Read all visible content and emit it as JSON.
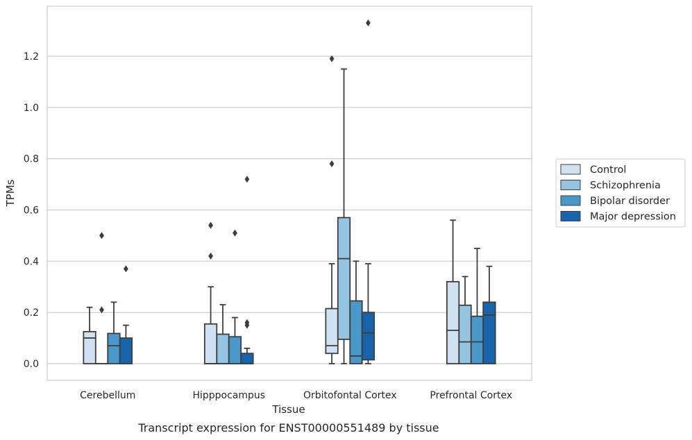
{
  "chart_data": {
    "type": "box",
    "caption": "Transcript expression for ENST00000551489 by tissue",
    "xlabel": "Tissue",
    "ylabel": "TPMs",
    "ylim": [
      -0.065,
      1.395
    ],
    "yticks": [
      0.0,
      0.2,
      0.4,
      0.6,
      0.8,
      1.0,
      1.2
    ],
    "ytick_labels": [
      "0.0",
      "0.2",
      "0.4",
      "0.6",
      "0.8",
      "1.0",
      "1.2"
    ],
    "grid": "horizontal",
    "legend_position": "right",
    "categories": [
      "Cerebellum",
      "Hipppocampus",
      "Orbitofontal Cortex",
      "Prefrontal Cortex"
    ],
    "series": [
      {
        "name": "Control",
        "color": "#d0e1f2",
        "boxes": [
          {
            "q1": 0.0,
            "median": 0.1,
            "q3": 0.125,
            "whisker_low": 0.0,
            "whisker_high": 0.22,
            "outliers": []
          },
          {
            "q1": 0.0,
            "median": 0.0,
            "q3": 0.155,
            "whisker_low": 0.0,
            "whisker_high": 0.3,
            "outliers": [
              0.42,
              0.54
            ]
          },
          {
            "q1": 0.04,
            "median": 0.07,
            "q3": 0.215,
            "whisker_low": 0.0,
            "whisker_high": 0.39,
            "outliers": [
              0.78,
              1.19
            ]
          },
          {
            "q1": 0.0,
            "median": 0.13,
            "q3": 0.32,
            "whisker_low": 0.0,
            "whisker_high": 0.56,
            "outliers": []
          }
        ]
      },
      {
        "name": "Schizophrenia",
        "color": "#94c4df",
        "boxes": [
          {
            "q1": 0.0,
            "median": 0.0,
            "q3": 0.0,
            "whisker_low": 0.0,
            "whisker_high": 0.0,
            "outliers": [
              0.21,
              0.5
            ]
          },
          {
            "q1": 0.0,
            "median": 0.0,
            "q3": 0.115,
            "whisker_low": 0.0,
            "whisker_high": 0.23,
            "outliers": []
          },
          {
            "q1": 0.095,
            "median": 0.41,
            "q3": 0.57,
            "whisker_low": 0.0,
            "whisker_high": 1.15,
            "outliers": []
          },
          {
            "q1": 0.0,
            "median": 0.085,
            "q3": 0.228,
            "whisker_low": 0.0,
            "whisker_high": 0.34,
            "outliers": []
          }
        ]
      },
      {
        "name": "Bipolar disorder",
        "color": "#4a98c9",
        "boxes": [
          {
            "q1": 0.0,
            "median": 0.07,
            "q3": 0.118,
            "whisker_low": 0.0,
            "whisker_high": 0.24,
            "outliers": []
          },
          {
            "q1": 0.0,
            "median": 0.0,
            "q3": 0.105,
            "whisker_low": 0.0,
            "whisker_high": 0.18,
            "outliers": [
              0.51
            ]
          },
          {
            "q1": 0.0,
            "median": 0.03,
            "q3": 0.245,
            "whisker_low": 0.0,
            "whisker_high": 0.4,
            "outliers": []
          },
          {
            "q1": 0.0,
            "median": 0.085,
            "q3": 0.185,
            "whisker_low": 0.0,
            "whisker_high": 0.45,
            "outliers": []
          }
        ]
      },
      {
        "name": "Major depression",
        "color": "#1764ab",
        "boxes": [
          {
            "q1": 0.0,
            "median": 0.0,
            "q3": 0.1,
            "whisker_low": 0.0,
            "whisker_high": 0.15,
            "outliers": [
              0.37
            ]
          },
          {
            "q1": 0.0,
            "median": 0.0,
            "q3": 0.04,
            "whisker_low": 0.0,
            "whisker_high": 0.06,
            "outliers": [
              0.15,
              0.16,
              0.72
            ]
          },
          {
            "q1": 0.015,
            "median": 0.12,
            "q3": 0.2,
            "whisker_low": 0.0,
            "whisker_high": 0.39,
            "outliers": [
              1.33
            ]
          },
          {
            "q1": 0.0,
            "median": 0.19,
            "q3": 0.24,
            "whisker_low": 0.0,
            "whisker_high": 0.38,
            "outliers": []
          }
        ]
      }
    ]
  }
}
